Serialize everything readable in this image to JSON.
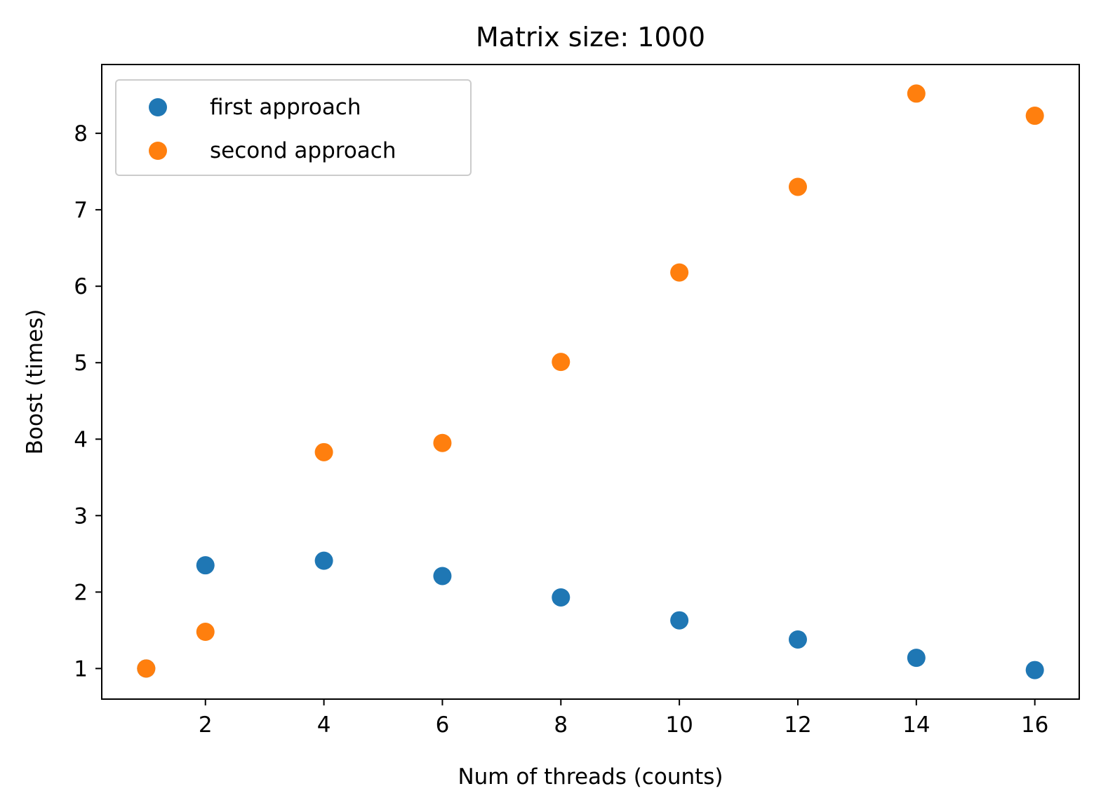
{
  "chart_data": {
    "type": "scatter",
    "title": "Matrix size: 1000",
    "xlabel": "Num of threads (counts)",
    "ylabel": "Boost (times)",
    "xlim": [
      0.25,
      16.75
    ],
    "ylim": [
      0.6,
      8.9
    ],
    "xticks": [
      2,
      4,
      6,
      8,
      10,
      12,
      14,
      16
    ],
    "yticks": [
      1,
      2,
      3,
      4,
      5,
      6,
      7,
      8
    ],
    "grid": false,
    "legend_position": "upper left",
    "series": [
      {
        "name": "first approach",
        "color": "#1f77b4",
        "x": [
          1,
          2,
          4,
          6,
          8,
          10,
          12,
          14,
          16
        ],
        "y": [
          1.0,
          2.35,
          2.41,
          2.21,
          1.93,
          1.63,
          1.38,
          1.14,
          0.98
        ]
      },
      {
        "name": "second approach",
        "color": "#ff7f0e",
        "x": [
          1,
          2,
          4,
          6,
          8,
          10,
          12,
          14,
          16
        ],
        "y": [
          1.0,
          1.48,
          3.83,
          3.95,
          5.01,
          6.18,
          7.3,
          8.52,
          8.23
        ]
      }
    ]
  }
}
